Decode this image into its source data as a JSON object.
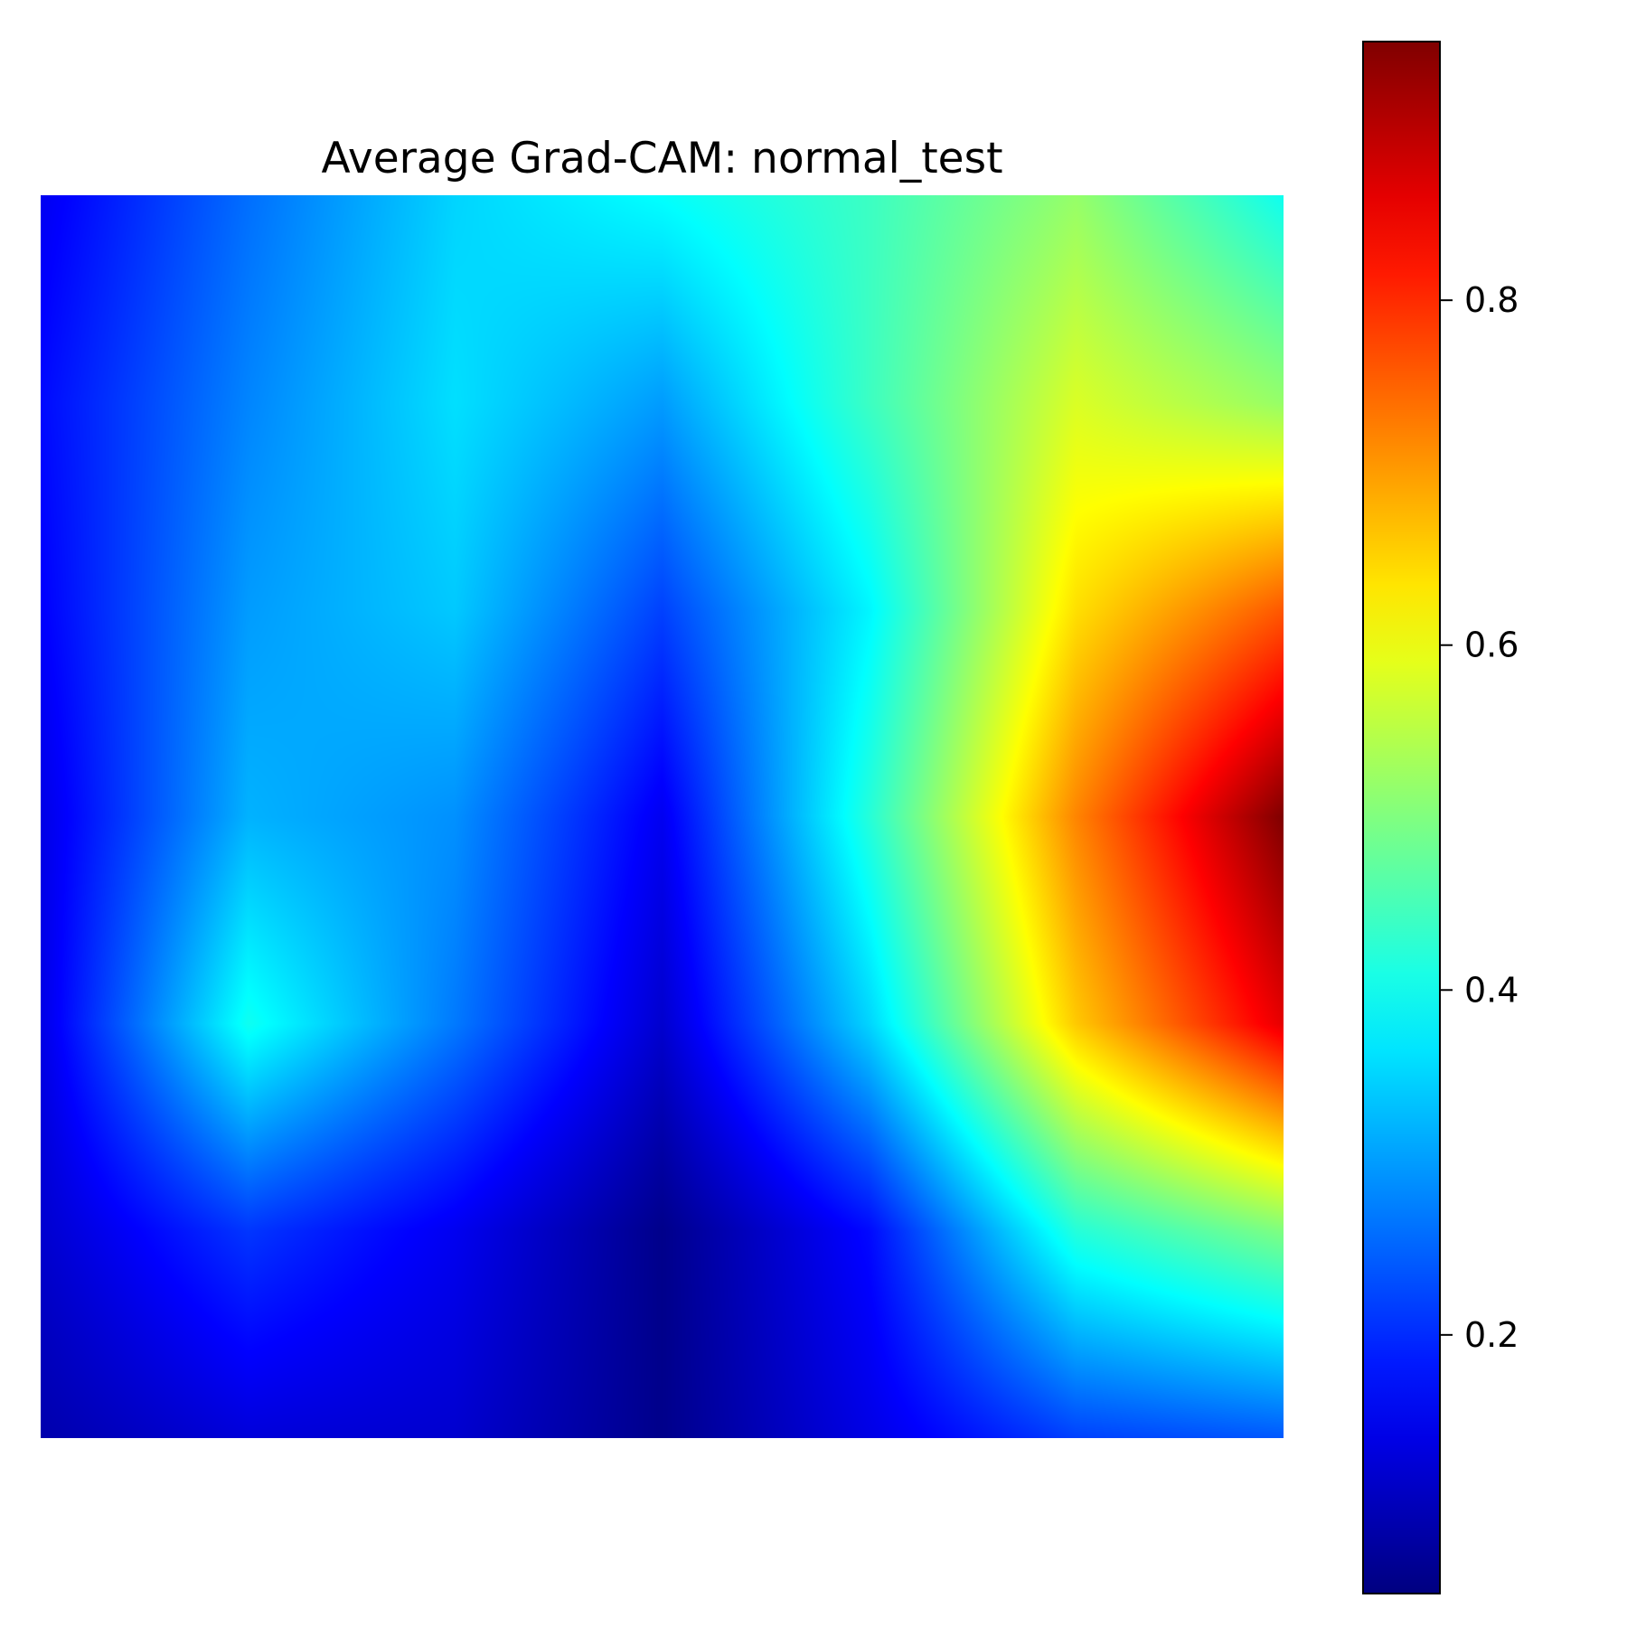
{
  "chart_data": {
    "type": "heatmap",
    "title": "Average Grad-CAM: normal_test",
    "xlabel": "",
    "ylabel": "",
    "axes_visible": false,
    "colormap": "jet",
    "colorbar": {
      "vmin": 0.05,
      "vmax": 0.95,
      "ticks": [
        0.2,
        0.4,
        0.6,
        0.8
      ],
      "tick_labels": [
        "0.2",
        "0.4",
        "0.6",
        "0.8"
      ],
      "placement": "right"
    },
    "grid_shape": [
      7,
      7
    ],
    "values": [
      [
        0.15,
        0.26,
        0.35,
        0.39,
        0.44,
        0.52,
        0.4
      ],
      [
        0.17,
        0.28,
        0.36,
        0.3,
        0.44,
        0.58,
        0.52
      ],
      [
        0.16,
        0.3,
        0.34,
        0.22,
        0.38,
        0.64,
        0.76
      ],
      [
        0.14,
        0.32,
        0.29,
        0.15,
        0.42,
        0.72,
        0.95
      ],
      [
        0.14,
        0.4,
        0.27,
        0.12,
        0.35,
        0.66,
        0.86
      ],
      [
        0.12,
        0.21,
        0.15,
        0.06,
        0.17,
        0.42,
        0.5
      ],
      [
        0.09,
        0.13,
        0.12,
        0.06,
        0.14,
        0.22,
        0.24
      ]
    ]
  },
  "colors": {
    "background": "#ffffff",
    "frame": "#000000"
  }
}
